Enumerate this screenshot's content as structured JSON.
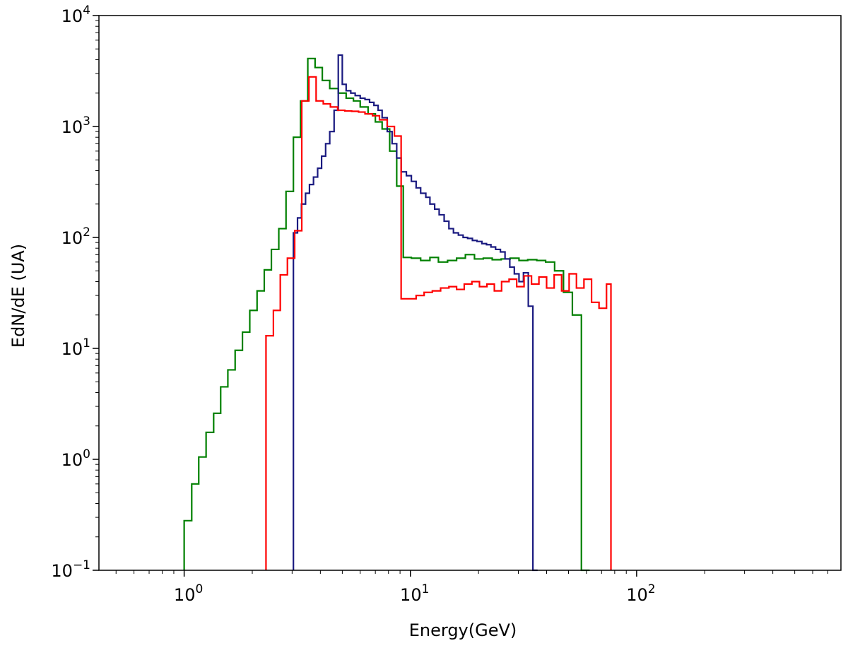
{
  "chart_data": {
    "type": "line",
    "step": true,
    "xlabel": "Energy(GeV)",
    "ylabel": "EdN/dE (UA)",
    "xscale": "log",
    "yscale": "log",
    "xlim": [
      0.42,
      800
    ],
    "ylim": [
      0.1,
      10000
    ],
    "grid": false,
    "x_ticks": [
      {
        "value": 1,
        "base": "10",
        "exp": "0"
      },
      {
        "value": 10,
        "base": "10",
        "exp": "1"
      },
      {
        "value": 100,
        "base": "10",
        "exp": "2"
      }
    ],
    "y_ticks": [
      {
        "value": 0.1,
        "base": "10",
        "exp": "−1"
      },
      {
        "value": 1,
        "base": "10",
        "exp": "0"
      },
      {
        "value": 10,
        "base": "10",
        "exp": "1"
      },
      {
        "value": 100,
        "base": "10",
        "exp": "2"
      },
      {
        "value": 1000,
        "base": "10",
        "exp": "3"
      },
      {
        "value": 10000,
        "base": "10",
        "exp": "4"
      }
    ],
    "series": [
      {
        "color": "#008000",
        "edges": [
          1.0,
          1.08,
          1.16,
          1.25,
          1.35,
          1.45,
          1.56,
          1.68,
          1.81,
          1.95,
          2.1,
          2.26,
          2.43,
          2.62,
          2.82,
          3.04,
          3.27,
          3.52,
          3.79,
          4.08,
          4.4,
          4.8,
          5.2,
          5.6,
          6.0,
          6.5,
          7.0,
          7.5,
          8.1,
          8.7,
          9.3,
          10.1,
          11.1,
          12.2,
          13.3,
          14.6,
          16.0,
          17.5,
          19.2,
          21.0,
          23.0,
          25.2,
          27.6,
          30.2,
          33.0,
          36.2,
          39.6,
          43.4,
          47.5,
          52.0,
          57.0,
          62.0
        ],
        "values": [
          0.28,
          0.6,
          1.05,
          1.75,
          2.6,
          4.5,
          6.4,
          9.6,
          14,
          22,
          33,
          51,
          78,
          120,
          260,
          800,
          1700,
          4100,
          3400,
          2600,
          2200,
          2000,
          1800,
          1700,
          1500,
          1300,
          1100,
          950,
          600,
          290,
          66,
          65,
          62,
          66,
          60,
          62,
          65,
          70,
          64,
          65,
          63,
          64,
          65,
          62,
          63,
          62,
          60,
          50,
          32,
          20,
          0.1
        ]
      },
      {
        "color": "#1a1a80",
        "edges": [
          3.04,
          3.17,
          3.3,
          3.44,
          3.58,
          3.73,
          3.89,
          4.05,
          4.22,
          4.4,
          4.6,
          4.8,
          5.0,
          5.2,
          5.45,
          5.7,
          6.0,
          6.3,
          6.6,
          6.9,
          7.2,
          7.5,
          7.9,
          8.3,
          8.7,
          9.1,
          9.6,
          10.1,
          10.6,
          11.1,
          11.7,
          12.2,
          12.8,
          13.4,
          14.1,
          14.8,
          15.5,
          16.3,
          17.1,
          17.9,
          18.8,
          19.7,
          20.7,
          21.7,
          22.7,
          23.8,
          25.0,
          26.2,
          27.5,
          28.8,
          30.2,
          31.6,
          33.2,
          34.8,
          36.5
        ],
        "values": [
          110,
          150,
          200,
          250,
          300,
          350,
          420,
          540,
          700,
          900,
          1400,
          4400,
          2400,
          2100,
          2000,
          1900,
          1800,
          1750,
          1650,
          1550,
          1400,
          1200,
          900,
          700,
          520,
          390,
          360,
          320,
          280,
          250,
          230,
          200,
          180,
          160,
          140,
          120,
          110,
          105,
          100,
          98,
          94,
          92,
          88,
          86,
          82,
          78,
          74,
          64,
          54,
          47,
          40,
          48,
          24,
          0.1
        ]
      },
      {
        "color": "#ff0000",
        "edges": [
          2.3,
          2.48,
          2.66,
          2.86,
          3.08,
          3.31,
          3.56,
          3.83,
          4.12,
          4.43,
          4.77,
          5.13,
          5.5,
          5.9,
          6.3,
          6.8,
          7.3,
          7.9,
          8.5,
          9.1,
          9.8,
          10.6,
          11.5,
          12.5,
          13.6,
          14.8,
          16.0,
          17.3,
          18.7,
          20.2,
          21.8,
          23.5,
          25.3,
          27.3,
          29.5,
          31.8,
          34.3,
          37.0,
          40.0,
          43.2,
          46.6,
          50.3,
          54.2,
          58.5,
          63.2,
          68.2,
          73.6,
          77.0
        ],
        "values": [
          13,
          22,
          46,
          65,
          115,
          1700,
          2800,
          1700,
          1600,
          1500,
          1400,
          1380,
          1370,
          1350,
          1300,
          1250,
          1150,
          1000,
          820,
          28,
          28,
          30,
          32,
          33,
          35,
          36,
          34,
          38,
          40,
          36,
          38,
          33,
          40,
          42,
          36,
          45,
          38,
          44,
          35,
          46,
          33,
          47,
          35,
          42,
          26,
          23,
          38,
          0.1
        ]
      }
    ]
  }
}
